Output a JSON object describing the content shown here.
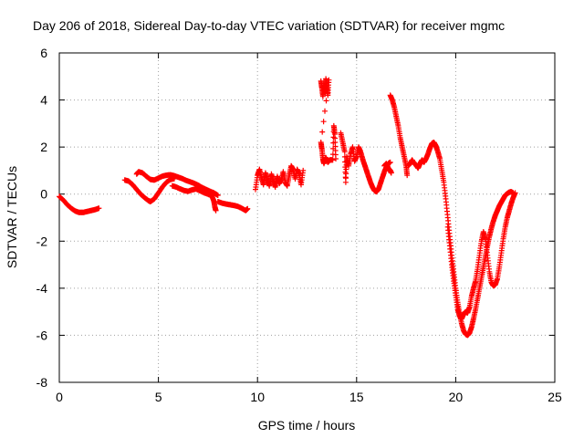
{
  "chart_data": {
    "type": "scatter",
    "title": "Day 206 of 2018, Sidereal Day-to-day VTEC variation (SDTVAR) for receiver mgmc",
    "xlabel": "GPS time / hours",
    "ylabel": "SDTVAR / TECUs",
    "xlim": [
      0,
      25
    ],
    "ylim": [
      -8,
      6
    ],
    "xticks": [
      0,
      5,
      10,
      15,
      20,
      25
    ],
    "yticks": [
      -8,
      -6,
      -4,
      -2,
      0,
      2,
      4,
      6
    ],
    "grid": true,
    "marker": "+",
    "color": "#ff0000",
    "series": [
      {
        "name": "SDTVAR",
        "segments": [
          [
            [
              0.0,
              -0.1
            ],
            [
              0.2,
              -0.25
            ],
            [
              0.4,
              -0.45
            ],
            [
              0.6,
              -0.6
            ],
            [
              0.8,
              -0.72
            ],
            [
              1.0,
              -0.78
            ],
            [
              1.2,
              -0.78
            ],
            [
              1.4,
              -0.74
            ],
            [
              1.6,
              -0.7
            ],
            [
              1.8,
              -0.66
            ],
            [
              2.0,
              -0.6
            ]
          ],
          [
            [
              3.3,
              0.6
            ],
            [
              3.5,
              0.55
            ],
            [
              3.7,
              0.4
            ],
            [
              3.9,
              0.2
            ],
            [
              4.1,
              0.0
            ],
            [
              4.3,
              -0.15
            ],
            [
              4.5,
              -0.28
            ],
            [
              4.6,
              -0.32
            ],
            [
              4.8,
              -0.2
            ],
            [
              5.0,
              0.05
            ],
            [
              5.2,
              0.3
            ],
            [
              5.4,
              0.5
            ],
            [
              5.6,
              0.62
            ],
            [
              5.8,
              0.66
            ]
          ],
          [
            [
              3.9,
              0.85
            ],
            [
              4.0,
              0.95
            ],
            [
              4.2,
              0.9
            ],
            [
              4.4,
              0.75
            ],
            [
              4.6,
              0.62
            ],
            [
              4.8,
              0.6
            ],
            [
              5.0,
              0.68
            ],
            [
              5.2,
              0.76
            ],
            [
              5.4,
              0.8
            ],
            [
              5.6,
              0.82
            ],
            [
              5.8,
              0.78
            ],
            [
              6.0,
              0.72
            ],
            [
              6.2,
              0.66
            ],
            [
              6.4,
              0.58
            ],
            [
              6.6,
              0.52
            ],
            [
              6.8,
              0.46
            ],
            [
              7.0,
              0.38
            ],
            [
              7.2,
              0.28
            ],
            [
              7.4,
              0.2
            ],
            [
              7.6,
              0.12
            ],
            [
              7.8,
              0.05
            ],
            [
              8.0,
              -0.05
            ]
          ],
          [
            [
              5.7,
              0.35
            ],
            [
              5.9,
              0.3
            ],
            [
              6.1,
              0.22
            ],
            [
              6.3,
              0.15
            ],
            [
              6.5,
              0.12
            ],
            [
              6.7,
              0.18
            ],
            [
              6.9,
              0.22
            ],
            [
              7.1,
              0.14
            ],
            [
              7.3,
              0.06
            ],
            [
              7.5,
              0.0
            ],
            [
              7.7,
              -0.08
            ],
            [
              7.8,
              -0.3
            ],
            [
              7.85,
              -0.55
            ],
            [
              7.9,
              -0.7
            ]
          ],
          [
            [
              8.0,
              -0.32
            ],
            [
              8.2,
              -0.38
            ],
            [
              8.4,
              -0.42
            ],
            [
              8.6,
              -0.45
            ],
            [
              8.8,
              -0.48
            ],
            [
              9.0,
              -0.52
            ],
            [
              9.2,
              -0.6
            ],
            [
              9.4,
              -0.7
            ],
            [
              9.5,
              -0.62
            ]
          ],
          [
            [
              9.9,
              0.2
            ],
            [
              10.0,
              0.8
            ],
            [
              10.1,
              1.05
            ],
            [
              10.2,
              0.7
            ],
            [
              10.3,
              0.4
            ],
            [
              10.4,
              0.9
            ],
            [
              10.5,
              0.6
            ],
            [
              10.6,
              0.35
            ],
            [
              10.7,
              0.85
            ],
            [
              10.8,
              0.55
            ],
            [
              10.9,
              0.3
            ],
            [
              11.0,
              0.75
            ],
            [
              11.1,
              0.45
            ],
            [
              11.2,
              0.6
            ],
            [
              11.3,
              0.95
            ],
            [
              11.4,
              0.5
            ],
            [
              11.5,
              0.35
            ],
            [
              11.6,
              0.8
            ],
            [
              11.7,
              1.2
            ],
            [
              11.8,
              1.05
            ],
            [
              11.9,
              0.65
            ],
            [
              12.0,
              1.05
            ],
            [
              12.1,
              0.85
            ],
            [
              12.2,
              0.4
            ],
            [
              12.3,
              1.0
            ]
          ],
          [
            [
              13.2,
              4.8
            ],
            [
              13.25,
              4.5
            ],
            [
              13.3,
              4.15
            ],
            [
              13.35,
              4.7
            ],
            [
              13.4,
              4.3
            ],
            [
              13.45,
              4.9
            ],
            [
              13.5,
              4.6
            ],
            [
              13.55,
              4.2
            ],
            [
              13.6,
              4.85
            ],
            [
              13.2,
              2.2
            ],
            [
              13.25,
              1.9
            ],
            [
              13.3,
              1.5
            ],
            [
              13.35,
              1.3
            ],
            [
              13.45,
              1.55
            ],
            [
              13.55,
              1.35
            ],
            [
              13.65,
              1.45
            ],
            [
              13.8,
              1.45
            ],
            [
              13.85,
              2.9
            ],
            [
              13.9,
              2.55
            ],
            [
              13.95,
              1.5
            ]
          ],
          [
            [
              14.2,
              2.6
            ],
            [
              14.3,
              2.2
            ],
            [
              14.4,
              1.8
            ],
            [
              14.45,
              0.5
            ],
            [
              14.5,
              1.6
            ],
            [
              14.6,
              1.2
            ],
            [
              14.7,
              1.7
            ],
            [
              14.8,
              2.0
            ],
            [
              14.9,
              1.4
            ],
            [
              15.0,
              1.6
            ],
            [
              15.1,
              2.0
            ],
            [
              15.2,
              1.8
            ],
            [
              15.3,
              1.5
            ],
            [
              15.4,
              1.25
            ],
            [
              15.5,
              1.0
            ],
            [
              15.6,
              0.75
            ],
            [
              15.7,
              0.5
            ],
            [
              15.8,
              0.3
            ],
            [
              15.9,
              0.15
            ],
            [
              16.0,
              0.1
            ],
            [
              16.1,
              0.2
            ],
            [
              16.2,
              0.45
            ],
            [
              16.3,
              0.7
            ],
            [
              16.4,
              0.95
            ],
            [
              16.5,
              1.15
            ],
            [
              16.6,
              1.3
            ],
            [
              16.7,
              1.35
            ]
          ],
          [
            [
              16.4,
              1.2
            ],
            [
              16.5,
              1.3
            ],
            [
              16.6,
              1.1
            ],
            [
              16.7,
              1.0
            ],
            [
              16.75,
              0.9
            ]
          ],
          [
            [
              16.7,
              4.2
            ],
            [
              16.8,
              4.0
            ],
            [
              16.9,
              3.7
            ],
            [
              17.0,
              3.3
            ],
            [
              17.1,
              2.9
            ],
            [
              17.2,
              2.4
            ],
            [
              17.3,
              2.0
            ],
            [
              17.4,
              1.6
            ],
            [
              17.5,
              1.2
            ],
            [
              17.55,
              0.8
            ]
          ],
          [
            [
              17.6,
              1.2
            ],
            [
              17.7,
              1.3
            ],
            [
              17.8,
              1.45
            ],
            [
              17.9,
              1.3
            ],
            [
              18.0,
              1.25
            ],
            [
              18.1,
              1.1
            ],
            [
              18.2,
              1.3
            ],
            [
              18.3,
              1.45
            ],
            [
              18.4,
              1.35
            ],
            [
              18.5,
              1.5
            ],
            [
              18.6,
              1.7
            ],
            [
              18.7,
              1.95
            ],
            [
              18.8,
              2.15
            ],
            [
              18.9,
              2.2
            ],
            [
              19.0,
              2.05
            ],
            [
              19.1,
              1.8
            ],
            [
              19.2,
              1.5
            ],
            [
              19.3,
              1.0
            ],
            [
              19.4,
              0.5
            ],
            [
              19.5,
              -0.2
            ],
            [
              19.6,
              -1.0
            ],
            [
              19.7,
              -1.8
            ],
            [
              19.8,
              -2.6
            ],
            [
              19.9,
              -3.3
            ],
            [
              20.0,
              -4.0
            ],
            [
              20.1,
              -4.6
            ],
            [
              20.2,
              -5.1
            ],
            [
              20.3,
              -5.5
            ],
            [
              20.4,
              -5.8
            ],
            [
              20.5,
              -5.95
            ],
            [
              20.6,
              -6.0
            ],
            [
              20.7,
              -5.9
            ],
            [
              20.8,
              -5.65
            ],
            [
              20.9,
              -5.3
            ],
            [
              21.0,
              -4.9
            ],
            [
              21.1,
              -4.45
            ],
            [
              21.2,
              -4.0
            ],
            [
              21.3,
              -3.55
            ],
            [
              21.4,
              -3.1
            ],
            [
              21.5,
              -2.65
            ],
            [
              21.6,
              -2.2
            ],
            [
              21.7,
              -1.8
            ],
            [
              21.8,
              -1.45
            ],
            [
              21.9,
              -1.15
            ],
            [
              22.0,
              -0.9
            ],
            [
              22.1,
              -0.7
            ],
            [
              22.2,
              -0.5
            ],
            [
              22.3,
              -0.35
            ],
            [
              22.4,
              -0.2
            ],
            [
              22.5,
              -0.05
            ],
            [
              22.6,
              0.02
            ],
            [
              22.7,
              0.08
            ],
            [
              22.8,
              0.1
            ],
            [
              22.9,
              0.05
            ]
          ],
          [
            [
              19.6,
              -1.4
            ],
            [
              19.7,
              -2.2
            ],
            [
              19.8,
              -3.0
            ],
            [
              19.9,
              -3.7
            ],
            [
              20.0,
              -4.3
            ],
            [
              20.1,
              -4.9
            ],
            [
              20.2,
              -5.2
            ],
            [
              20.3,
              -5.3
            ],
            [
              20.4,
              -5.1
            ],
            [
              20.5,
              -5.0
            ],
            [
              20.6,
              -5.05
            ],
            [
              20.7,
              -4.8
            ],
            [
              20.8,
              -4.35
            ],
            [
              20.9,
              -4.0
            ],
            [
              21.0,
              -3.7
            ],
            [
              21.1,
              -3.2
            ],
            [
              21.2,
              -2.6
            ],
            [
              21.3,
              -2.0
            ],
            [
              21.4,
              -1.6
            ],
            [
              21.5,
              -1.9
            ],
            [
              21.6,
              -2.6
            ],
            [
              21.7,
              -3.3
            ],
            [
              21.8,
              -3.75
            ],
            [
              21.9,
              -3.9
            ],
            [
              22.0,
              -3.85
            ],
            [
              22.1,
              -3.6
            ],
            [
              22.2,
              -3.1
            ],
            [
              22.3,
              -2.5
            ],
            [
              22.4,
              -1.9
            ],
            [
              22.5,
              -1.4
            ],
            [
              22.6,
              -1.0
            ],
            [
              22.7,
              -0.7
            ],
            [
              22.8,
              -0.4
            ],
            [
              22.9,
              -0.15
            ],
            [
              23.0,
              0.05
            ]
          ]
        ]
      }
    ]
  }
}
